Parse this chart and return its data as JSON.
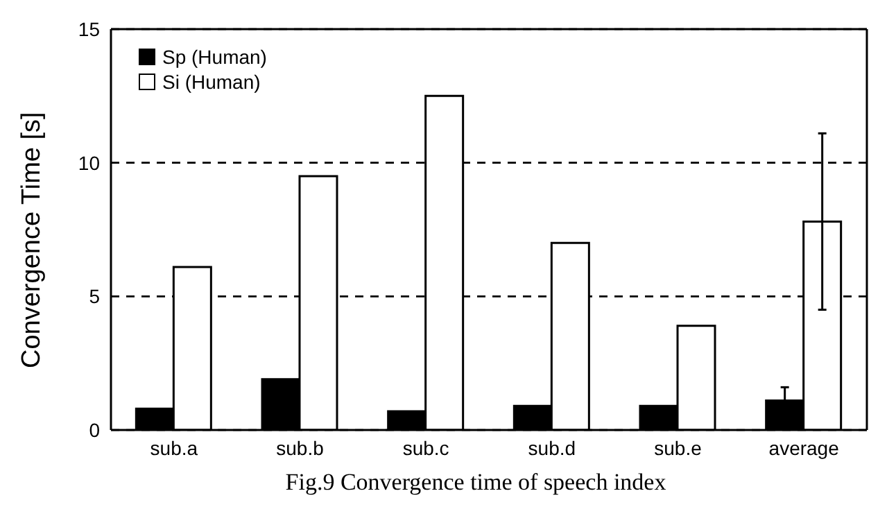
{
  "chart_data": {
    "type": "bar",
    "title": "Fig.9 Convergence time of speech index",
    "ylabel": "Convergence Time [s]",
    "categories": [
      "sub.a",
      "sub.b",
      "sub.c",
      "sub.d",
      "sub.e",
      "average"
    ],
    "series": [
      {
        "name": "Sp (Human)",
        "color": "#000000",
        "values": [
          0.8,
          1.9,
          0.7,
          0.9,
          0.9,
          1.1
        ],
        "errors": [
          null,
          null,
          null,
          null,
          null,
          0.5
        ]
      },
      {
        "name": "Si (Human)",
        "color": "#ffffff",
        "values": [
          6.1,
          9.5,
          12.5,
          7.0,
          3.9,
          7.8
        ],
        "errors": [
          null,
          null,
          null,
          null,
          null,
          3.3
        ]
      }
    ],
    "ylim": [
      0,
      15
    ],
    "yticks": [
      0,
      5,
      10,
      15
    ],
    "grid": "y",
    "line_style": "dashed",
    "legend": "top left"
  }
}
